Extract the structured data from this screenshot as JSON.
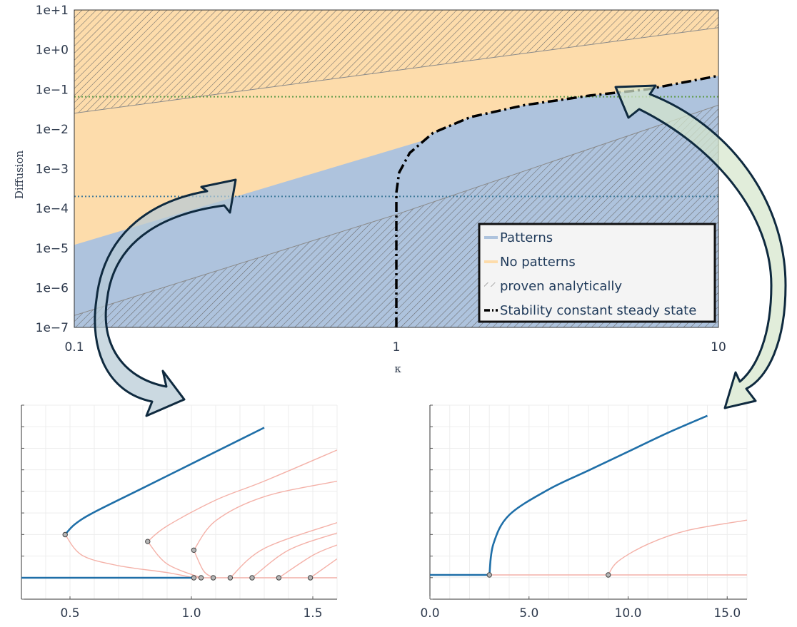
{
  "chart_data": [
    {
      "type": "area",
      "title": "",
      "xlabel": "κ",
      "ylabel": "Diffusion",
      "xscale": "log",
      "yscale": "log",
      "xlim": [
        0.1,
        10
      ],
      "ylim": [
        1e-07,
        10
      ],
      "xticks": [
        "0.1",
        "1",
        "10"
      ],
      "yticks": [
        "1e−7",
        "1e−6",
        "1e−5",
        "1e−4",
        "1e−3",
        "1e−2",
        "1e−1",
        "1e+0",
        "1e+1"
      ],
      "series": [
        {
          "name": "Patterns",
          "color": "#aec3dd"
        },
        {
          "name": "No patterns",
          "color": "#fddcab"
        },
        {
          "name": "proven analytically",
          "pattern": "hatch"
        },
        {
          "name": "Stability constant steady state",
          "style": "dash-dot",
          "color": "#000000"
        }
      ],
      "boundaries": {
        "patterns_upper_boundary": {
          "x": [
            0.1,
            1.2
          ],
          "y": [
            1.2e-05,
            0.005
          ]
        },
        "upper_hatch_boundary": {
          "x": [
            0.1,
            10
          ],
          "y": [
            0.025,
            3.6
          ]
        },
        "lower_hatch_boundary": {
          "x": [
            0.1,
            1,
            10
          ],
          "y": [
            2e-07,
            7e-05,
            0.04
          ]
        },
        "stability_curve": {
          "x": [
            1,
            1,
            1.02,
            1.1,
            1.3,
            1.7,
            2.5,
            4,
            6,
            10
          ],
          "y": [
            1e-07,
            0.00025,
            0.0008,
            0.0025,
            0.008,
            0.02,
            0.04,
            0.07,
            0.1,
            0.22
          ]
        }
      },
      "reference_lines": [
        {
          "y": 0.065,
          "color": "#5f9a4a",
          "style": "dotted"
        },
        {
          "y": 0.0002,
          "color": "#3f7a9a",
          "style": "dotted"
        }
      ],
      "legend_position": "bottom-right",
      "grid": false
    },
    {
      "type": "line",
      "title": "",
      "xlabel": "",
      "ylabel": "",
      "xlim": [
        0.3,
        1.6
      ],
      "xticks": [
        "0.5",
        "1.0",
        "1.5"
      ],
      "grid": true,
      "series": [
        {
          "color": "#1f6fa8",
          "role": "stable",
          "x": [
            0.3,
            1.01
          ],
          "y": [
            0,
            0
          ]
        },
        {
          "color": "#1f6fa8",
          "role": "stable",
          "x": [
            0.48,
            0.52,
            0.6,
            0.8,
            1.0,
            1.2,
            1.3
          ],
          "y": [
            0.25,
            0.31,
            0.38,
            0.52,
            0.66,
            0.8,
            0.87
          ]
        },
        {
          "color": "#f4b1a8",
          "role": "unstable",
          "x": [
            1.01,
            1.6
          ],
          "y": [
            0,
            0
          ]
        },
        {
          "color": "#f4b1a8",
          "role": "unstable",
          "x": [
            0.48,
            0.55,
            0.7,
            0.9,
            1.01
          ],
          "y": [
            0.25,
            0.13,
            0.07,
            0.03,
            0
          ]
        },
        {
          "color": "#f4b1a8",
          "role": "unstable",
          "x": [
            0.82,
            0.9,
            1.1,
            1.3,
            1.6
          ],
          "y": [
            0.21,
            0.3,
            0.45,
            0.56,
            0.74
          ]
        },
        {
          "color": "#f4b1a8",
          "role": "unstable",
          "x": [
            0.82,
            0.9,
            1.04
          ],
          "y": [
            0.21,
            0.08,
            0
          ]
        },
        {
          "color": "#f4b1a8",
          "role": "unstable",
          "x": [
            1.01,
            1.1,
            1.3,
            1.6
          ],
          "y": [
            0.16,
            0.33,
            0.47,
            0.56
          ]
        },
        {
          "color": "#f4b1a8",
          "role": "unstable",
          "x": [
            1.01,
            1.05,
            1.09
          ],
          "y": [
            0.16,
            0.04,
            0
          ]
        },
        {
          "color": "#f4b1a8",
          "role": "unstable",
          "x": [
            1.16,
            1.3,
            1.6
          ],
          "y": [
            0,
            0.17,
            0.32
          ]
        },
        {
          "color": "#f4b1a8",
          "role": "unstable",
          "x": [
            1.25,
            1.4,
            1.6
          ],
          "y": [
            0,
            0.16,
            0.26
          ]
        },
        {
          "color": "#f4b1a8",
          "role": "unstable",
          "x": [
            1.36,
            1.5,
            1.6
          ],
          "y": [
            0,
            0.13,
            0.19
          ]
        },
        {
          "color": "#f4b1a8",
          "role": "unstable",
          "x": [
            1.49,
            1.6
          ],
          "y": [
            0,
            0.11
          ]
        }
      ],
      "points": {
        "x": [
          0.48,
          0.82,
          1.01,
          1.01,
          1.04,
          1.09,
          1.16,
          1.25,
          1.36,
          1.49
        ],
        "y": [
          0.25,
          0.21,
          0.16,
          0,
          0,
          0,
          0,
          0,
          0,
          0
        ]
      }
    },
    {
      "type": "line",
      "title": "",
      "xlabel": "",
      "ylabel": "",
      "xlim": [
        0,
        16
      ],
      "xticks": [
        "0.0",
        "5.0",
        "10.0",
        "15.0"
      ],
      "grid": true,
      "series": [
        {
          "color": "#1f6fa8",
          "role": "stable",
          "x": [
            0,
            3
          ],
          "y": [
            0,
            0
          ]
        },
        {
          "color": "#1f6fa8",
          "role": "stable",
          "x": [
            3,
            3.2,
            4,
            6,
            8,
            10,
            12,
            14
          ],
          "y": [
            0,
            0.18,
            0.35,
            0.5,
            0.61,
            0.72,
            0.83,
            0.93
          ]
        },
        {
          "color": "#f4b1a8",
          "role": "unstable",
          "x": [
            3,
            16
          ],
          "y": [
            0,
            0
          ]
        },
        {
          "color": "#f4b1a8",
          "role": "unstable",
          "x": [
            9,
            9.5,
            11,
            13,
            16
          ],
          "y": [
            0,
            0.08,
            0.18,
            0.26,
            0.32
          ]
        }
      ],
      "points": {
        "x": [
          3,
          9
        ],
        "y": [
          0,
          0
        ]
      }
    }
  ]
}
